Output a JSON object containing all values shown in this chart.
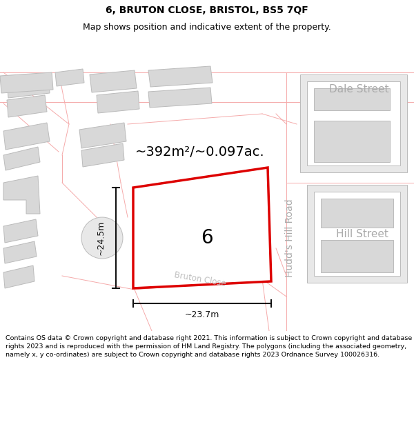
{
  "title_line1": "6, BRUTON CLOSE, BRISTOL, BS5 7QF",
  "title_line2": "Map shows position and indicative extent of the property.",
  "footer_text": "Contains OS data © Crown copyright and database right 2021. This information is subject to Crown copyright and database rights 2023 and is reproduced with the permission of HM Land Registry. The polygons (including the associated geometry, namely x, y co-ordinates) are subject to Crown copyright and database rights 2023 Ordnance Survey 100026316.",
  "area_label": "~392m²/~0.097ac.",
  "property_number": "6",
  "width_label": "~23.7m",
  "height_label": "~24.5m",
  "building_fill": "#d8d8d8",
  "building_stroke": "#bbbbbb",
  "pink": "#f5aaaa",
  "red": "#dd0000",
  "street_color": "#aaaaaa",
  "dim_color": "#111111",
  "dale_street": "Dale Street",
  "hill_street": "Hill Street",
  "hudds_hill_road": "Hudd's Hill Road",
  "bruton_close": "Bruton Close",
  "title_fontsize": 10,
  "subtitle_fontsize": 9,
  "footer_fontsize": 6.8,
  "area_fontsize": 14,
  "street_fontsize": 11,
  "prop_num_fontsize": 20,
  "dim_fontsize": 9
}
